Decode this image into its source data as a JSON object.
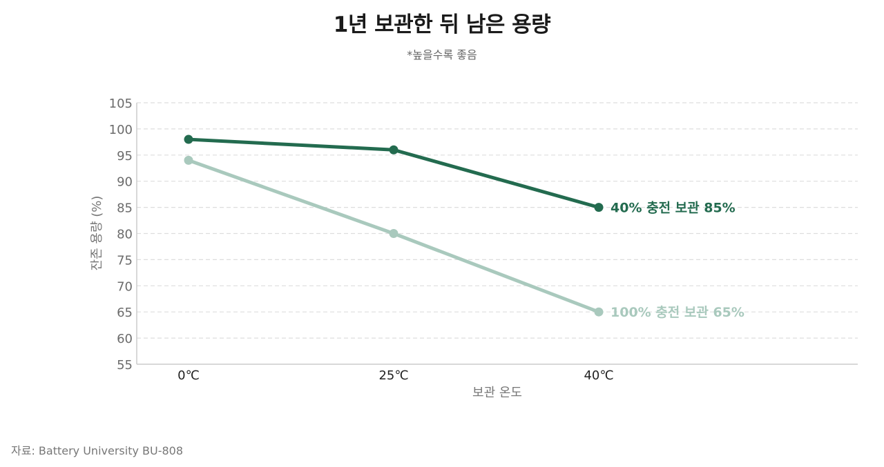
{
  "title": "1년 보관한 뒤 남은 용량",
  "subtitle": "*높을수록 좋음",
  "source": "자료: Battery University BU-808",
  "colors": {
    "series_dark": "#236b4f",
    "series_light": "#a9c9bd",
    "grid": "#dddddd",
    "axis": "#cccccc"
  },
  "chart_data": {
    "type": "line",
    "xlabel": "보관 온도",
    "ylabel": "잔존 용량 (%)",
    "categories": [
      "0℃",
      "25℃",
      "40℃"
    ],
    "ylim": [
      55,
      105
    ],
    "yticks": [
      55,
      60,
      65,
      70,
      75,
      80,
      85,
      90,
      95,
      100,
      105
    ],
    "grid": true,
    "series": [
      {
        "name": "40% 충전 보관",
        "end_label": "40% 충전 보관  85%",
        "values": [
          98,
          96,
          85
        ],
        "color": "#236b4f"
      },
      {
        "name": "100% 충전 보관",
        "end_label": "100% 충전 보관  65%",
        "values": [
          94,
          80,
          65
        ],
        "color": "#a9c9bd"
      }
    ]
  }
}
